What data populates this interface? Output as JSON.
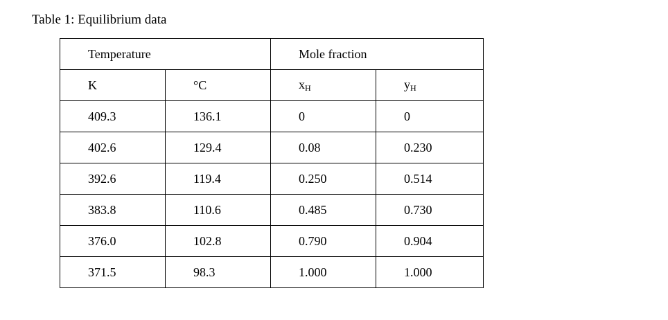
{
  "caption": "Table 1: Equilibrium data",
  "table": {
    "group_headers": [
      "Temperature",
      "Mole fraction"
    ],
    "unit_headers": [
      "K",
      "°C"
    ],
    "fraction_headers": [
      {
        "symbol": "x",
        "subscript": "H"
      },
      {
        "symbol": "y",
        "subscript": "H"
      }
    ],
    "rows": [
      [
        "409.3",
        "136.1",
        "0",
        "0"
      ],
      [
        "402.6",
        "129.4",
        "0.08",
        "0.230"
      ],
      [
        "392.6",
        "119.4",
        "0.250",
        "0.514"
      ],
      [
        "383.8",
        "110.6",
        "0.485",
        "0.730"
      ],
      [
        "376.0",
        "102.8",
        "0.790",
        "0.904"
      ],
      [
        "371.5",
        "98.3",
        "1.000",
        "1.000"
      ]
    ]
  }
}
